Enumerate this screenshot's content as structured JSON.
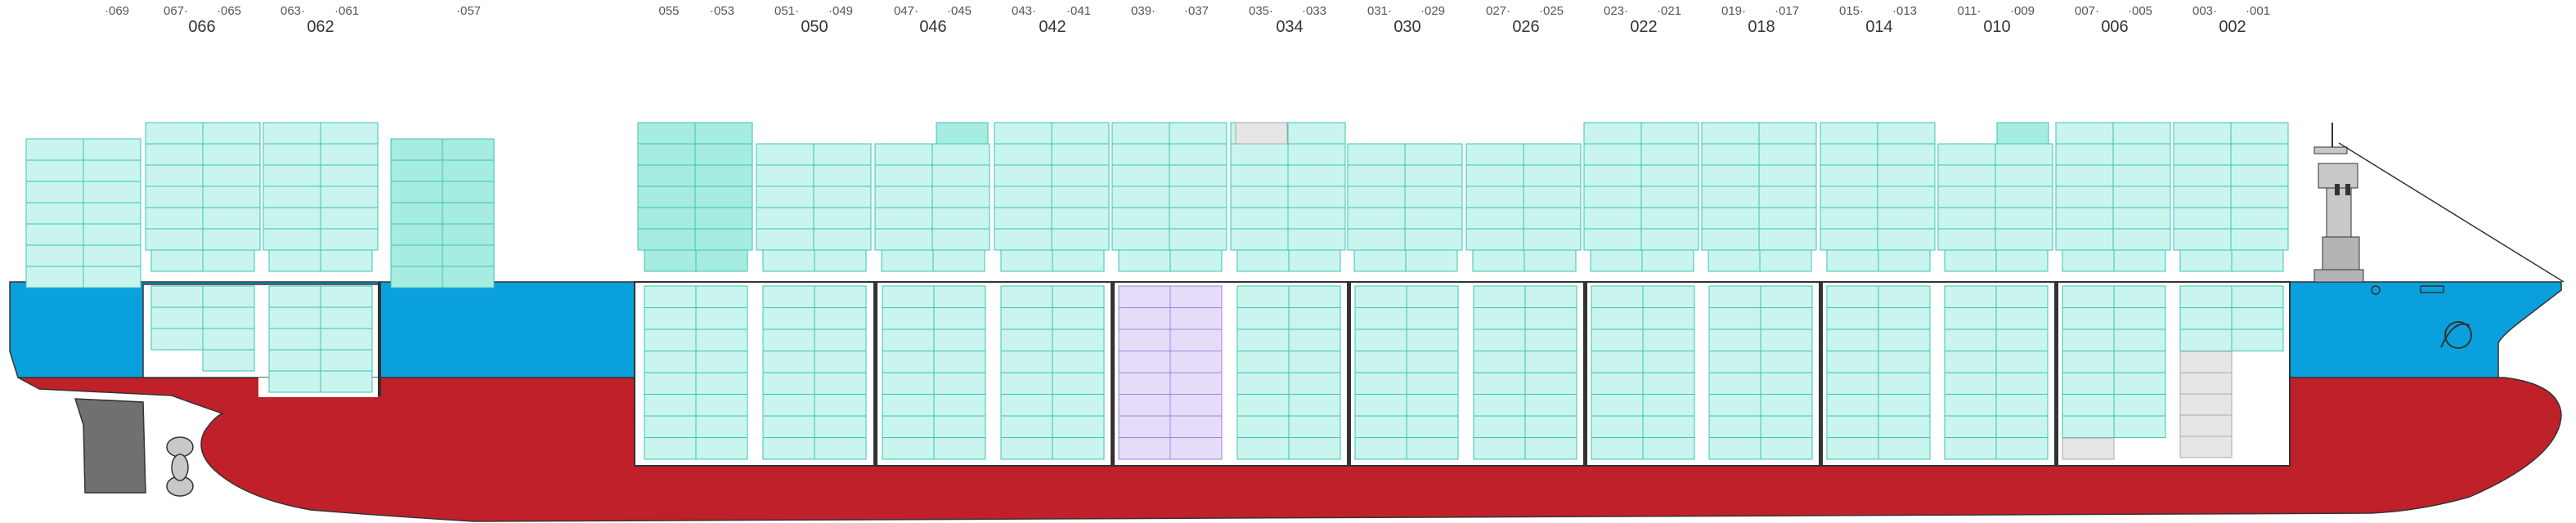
{
  "bay_labels": {
    "major": [
      "066",
      "062",
      "050",
      "046",
      "042",
      "034",
      "030",
      "026",
      "022",
      "018",
      "014",
      "010",
      "006",
      "002"
    ],
    "minor": [
      "·069",
      "067·",
      "·065",
      "063·",
      "·061",
      "·057",
      "055",
      "·053",
      "051·",
      "·049",
      "047·",
      "·045",
      "043·",
      "·041",
      "039·",
      "·037",
      "035·",
      "·033",
      "031·",
      "·029",
      "027·",
      "·025",
      "023·",
      "·021",
      "019·",
      "·017",
      "015·",
      "·013",
      "011·",
      "·009",
      "007·",
      "·005",
      "003·",
      "·001"
    ]
  },
  "colors": {
    "hull": "#c0202a",
    "deck": "#0aa0dd",
    "container_fill": "#c9f5ee",
    "container_stroke": "#3cc4b3",
    "container_dark_fill": "#a6ece0",
    "reefer_fill": "#e6dcfa",
    "reefer_stroke": "#9b86d8",
    "empty_fill": "#e6e6e6",
    "empty_stroke": "#aaaaaa",
    "outline": "#333333"
  },
  "icons": [
    "bridge-superstructure-icon",
    "propeller-icon",
    "rudder-icon",
    "anchor-icon",
    "bow-thruster-icon"
  ]
}
